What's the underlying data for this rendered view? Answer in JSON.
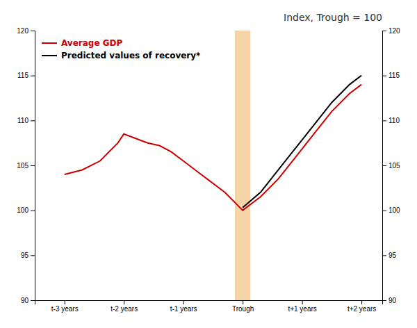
{
  "chart_data": {
    "type": "line",
    "title": "Index, Trough = 100",
    "series": [
      {
        "name": "Average GDP",
        "color": "#cc0000",
        "x": [
          -3,
          -2.7,
          -2.4,
          -2.1,
          -2.0,
          -1.8,
          -1.6,
          -1.4,
          -1.2,
          -1.0,
          -0.8,
          -0.6,
          -0.3,
          0.0,
          0.3,
          0.6,
          0.9,
          1.2,
          1.5,
          1.8,
          2.0
        ],
        "values": [
          104.0,
          104.5,
          105.5,
          107.5,
          108.5,
          108.0,
          107.5,
          107.2,
          106.5,
          105.5,
          104.5,
          103.5,
          102.0,
          100.0,
          101.5,
          103.5,
          106.0,
          108.5,
          111.0,
          113.0,
          114.0
        ]
      },
      {
        "name": "Predicted values of recovery*",
        "color": "#000000",
        "x": [
          0.0,
          0.3,
          0.6,
          0.9,
          1.2,
          1.5,
          1.8,
          2.0
        ],
        "values": [
          100.3,
          102.0,
          104.5,
          107.0,
          109.5,
          112.0,
          114.0,
          115.0
        ]
      }
    ],
    "shading": {
      "x_start": -0.13,
      "x_end": 0.13,
      "color": "#f5d5a8"
    },
    "xlim": [
      -3.5,
      2.35
    ],
    "xticks": [
      {
        "value": -3,
        "label": "t-3 years"
      },
      {
        "value": -2,
        "label": "t-2 years"
      },
      {
        "value": -1,
        "label": "t-1 years"
      },
      {
        "value": 0,
        "label": "Trough"
      },
      {
        "value": 1,
        "label": "t+1 years"
      },
      {
        "value": 2,
        "label": "t+2 years"
      }
    ],
    "ylim": [
      90,
      120
    ],
    "yticks": [
      90,
      95,
      100,
      105,
      110,
      115,
      120
    ],
    "y2lim": [
      90,
      120
    ],
    "y2ticks": [
      90,
      95,
      100,
      105,
      110,
      115,
      120
    ],
    "legend": "upper left",
    "grid": false
  }
}
